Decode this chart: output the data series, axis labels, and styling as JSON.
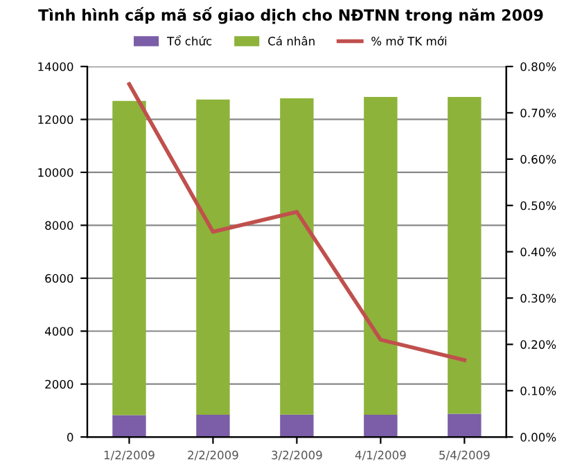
{
  "chart_data": {
    "type": "bar",
    "title": "Tình hình cấp mã số giao dịch cho NĐTNN trong năm 2009",
    "categories": [
      "1/2/2009",
      "2/2/2009",
      "3/2/2009",
      "4/1/2009",
      "5/4/2009"
    ],
    "stacked": true,
    "series": [
      {
        "name": "Tổ chức",
        "color": "#7b5ea7",
        "values": [
          830,
          840,
          850,
          840,
          880
        ]
      },
      {
        "name": "Cá nhân",
        "color": "#8db33a",
        "values": [
          11870,
          11910,
          11950,
          12010,
          11970
        ]
      },
      {
        "name": "% mở TK mới",
        "type": "line",
        "axis": "y2",
        "color": "#c0504d",
        "values": [
          0.762,
          0.443,
          0.486,
          0.21,
          0.166
        ]
      }
    ],
    "ylim": [
      0,
      14000
    ],
    "yticks": [
      0,
      2000,
      4000,
      6000,
      8000,
      10000,
      12000,
      14000
    ],
    "y2lim": [
      0,
      0.8
    ],
    "y2ticks": [
      {
        "value": 0,
        "label": "0.00%"
      },
      {
        "value": 0.1,
        "label": "0.10%"
      },
      {
        "value": 0.2,
        "label": "0.20%"
      },
      {
        "value": 0.3,
        "label": "0.30%"
      },
      {
        "value": 0.4,
        "label": "0.40%"
      },
      {
        "value": 0.5,
        "label": "0.50%"
      },
      {
        "value": 0.6,
        "label": "0.60%"
      },
      {
        "value": 0.7,
        "label": "0.70%"
      },
      {
        "value": 0.8,
        "label": "0.80%"
      }
    ],
    "grid": "y",
    "legend": "top"
  }
}
